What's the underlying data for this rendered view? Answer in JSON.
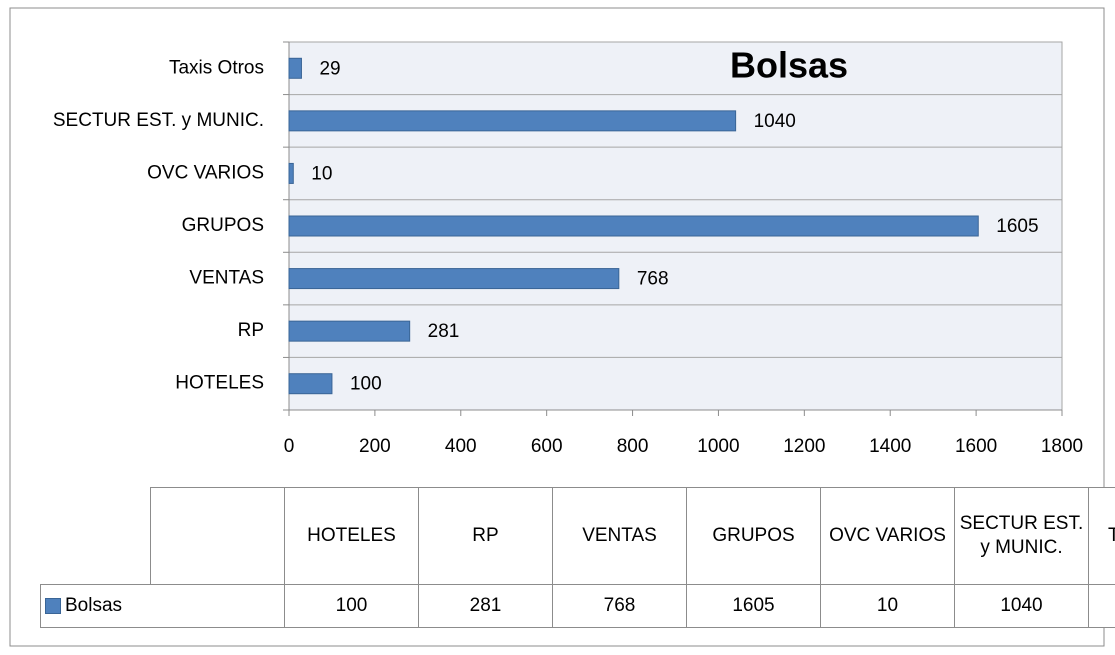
{
  "chart_data": {
    "type": "bar",
    "orientation": "horizontal",
    "title": "Bolsas",
    "categories": [
      "HOTELES",
      "RP",
      "VENTAS",
      "GRUPOS",
      "OVC VARIOS",
      "SECTUR EST. y MUNIC.",
      "Taxis Otros"
    ],
    "series": [
      {
        "name": "Bolsas",
        "color": "#4f81bd",
        "values": [
          100,
          281,
          768,
          1605,
          10,
          1040,
          29
        ]
      }
    ],
    "xlim": [
      0,
      1800
    ],
    "xticks": [
      0,
      200,
      400,
      600,
      800,
      1000,
      1200,
      1400,
      1600,
      1800
    ],
    "data_table": true
  }
}
